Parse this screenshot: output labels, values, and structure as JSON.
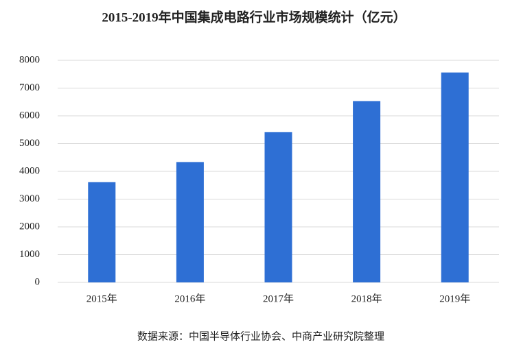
{
  "chart_data": {
    "type": "bar",
    "title": "2015-2019年中国集成电路行业市场规模统计（亿元）",
    "categories": [
      "2015年",
      "2016年",
      "2017年",
      "2018年",
      "2019年"
    ],
    "values": [
      3610,
      4336,
      5411,
      6532,
      7562
    ],
    "color": "#2e6fd4",
    "ylim": [
      0,
      8000
    ],
    "yticks": [
      0,
      1000,
      2000,
      3000,
      4000,
      5000,
      6000,
      7000,
      8000
    ],
    "grid": true,
    "source": "数据来源：中国半导体行业协会、中商产业研究院整理"
  }
}
